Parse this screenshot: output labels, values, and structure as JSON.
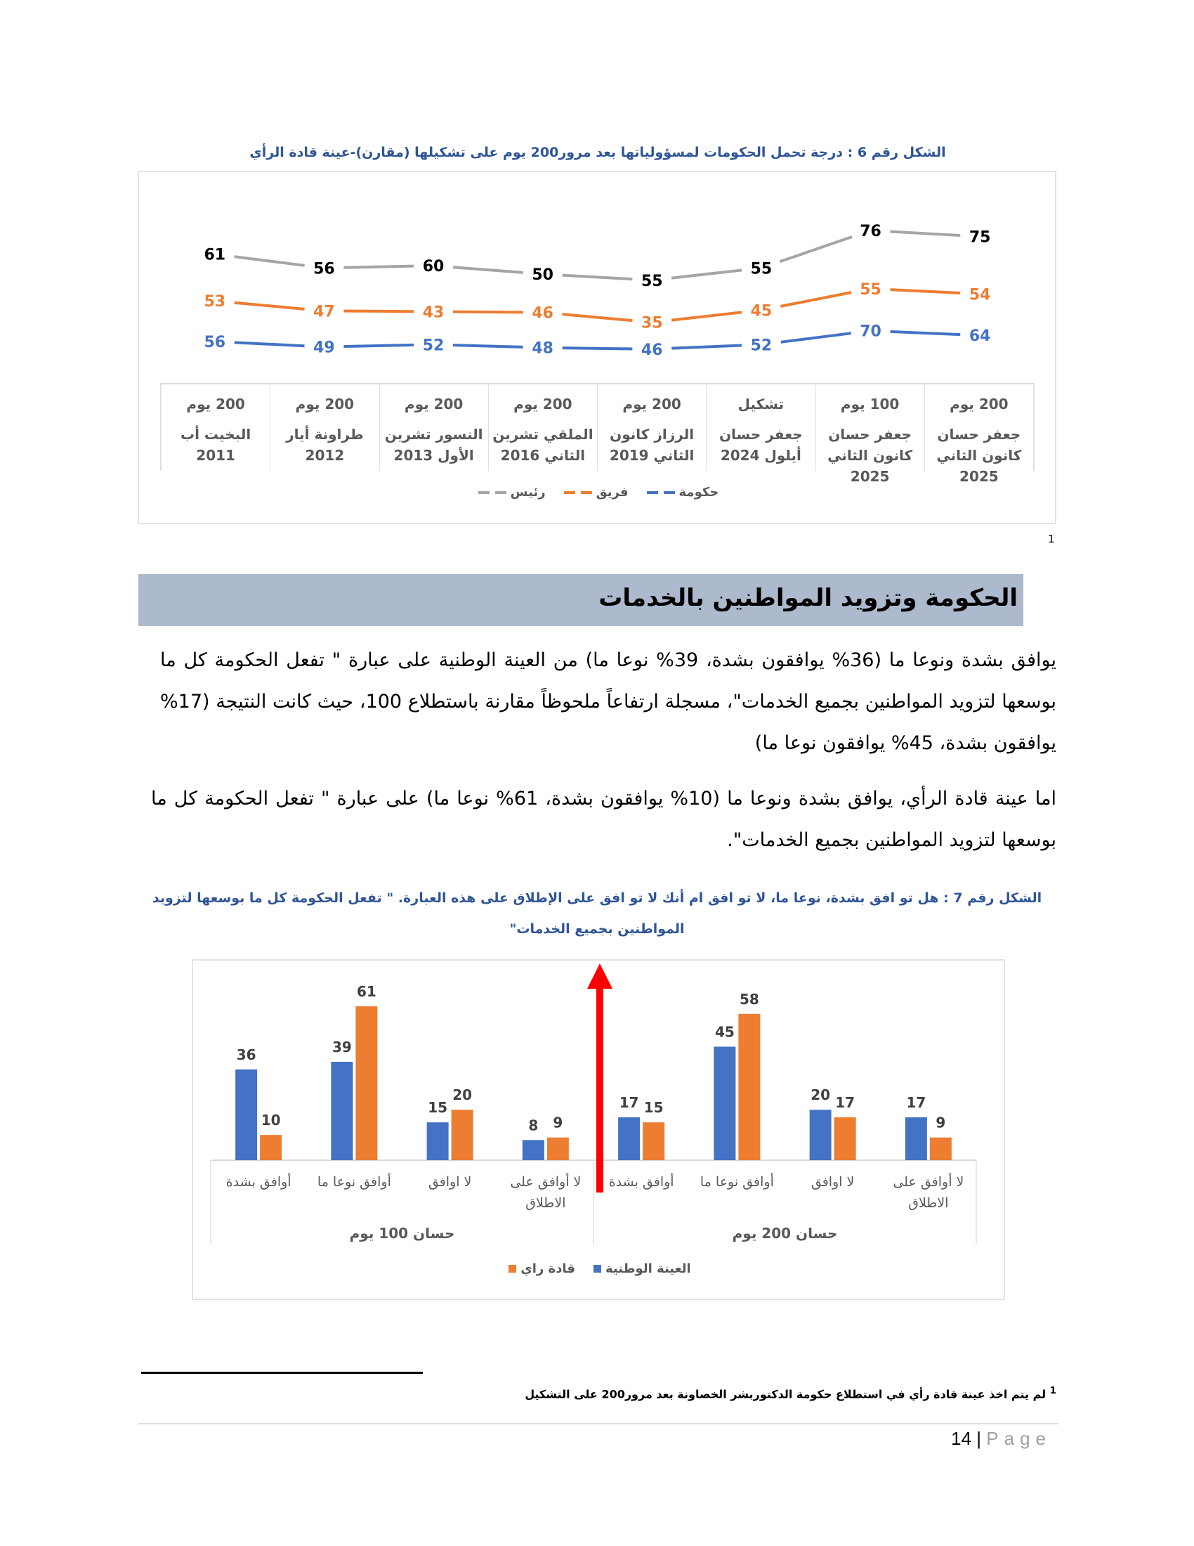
{
  "figure6": {
    "title": "الشكل رقم 6 : درجة تحمل الحكومات لمسؤولياتها بعد مرور200 يوم على تشكيلها (مقارن)-عينة قادة الرأي",
    "footnote_ref": "1"
  },
  "chart_data": [
    {
      "type": "line",
      "stacked": true,
      "title": "",
      "categories": [
        {
          "line1": "200 يوم",
          "line2": "البخيت أب 2011"
        },
        {
          "line1": "200 يوم",
          "line2": "طراونة أيار 2012"
        },
        {
          "line1": "200 يوم",
          "line2": "النسور تشرين الأول 2013"
        },
        {
          "line1": "200 يوم",
          "line2": "الملقي تشرين الثاني 2016"
        },
        {
          "line1": "200 يوم",
          "line2": "الرزاز كانون الثاني 2019"
        },
        {
          "line1": "تشكيل",
          "line2": "جعفر حسان أيلول 2024"
        },
        {
          "line1": "100 يوم",
          "line2": "جعفر حسان كانون الثاني 2025"
        },
        {
          "line1": "200 يوم",
          "line2": "جعفر حسان كانون الثاني 2025"
        }
      ],
      "series": [
        {
          "name": "حكومة",
          "color": "#4472c4",
          "values": [
            56,
            49,
            52,
            48,
            46,
            52,
            70,
            64
          ]
        },
        {
          "name": "فريق",
          "color": "#ed7d31",
          "values": [
            53,
            47,
            43,
            46,
            35,
            45,
            55,
            54
          ]
        },
        {
          "name": "رئيس",
          "color": "#a5a5a5",
          "label_color": "#000000",
          "values": [
            61,
            56,
            60,
            50,
            55,
            55,
            76,
            75
          ]
        }
      ],
      "legend": "bottom",
      "grid": false
    },
    {
      "type": "bar",
      "title": "الشكل رقم 7 : هل تو افق بشدة، نوعا ما، لا تو افق ام أنك لا تو افق على الإطلاق على هذه العبارة. \" تفعل الحكومة كل ما بوسعها لتزويد المواطنين بجميع الخدمات\"",
      "groups": [
        {
          "label": "حسان 200 يوم",
          "categories": [
            "أوافق بشدة",
            "أوافق نوعا ما",
            "لا اوافق",
            "لا أوافق على الاطلاق"
          ]
        },
        {
          "label": "حسان 100 يوم",
          "categories": [
            "أوافق بشدة",
            "أوافق نوعا ما",
            "لا اوافق",
            "لا أوافق على الاطلاق"
          ]
        }
      ],
      "series": [
        {
          "name": "العينة الوطنية",
          "color": "#4472c4",
          "values": [
            36,
            39,
            15,
            8,
            17,
            45,
            20,
            17
          ]
        },
        {
          "name": "قادة راي",
          "color": "#ed7d31",
          "values": [
            10,
            61,
            20,
            9,
            15,
            58,
            17,
            9
          ]
        }
      ],
      "legend": "bottom",
      "grid": false,
      "annotation": {
        "type": "arrow-up",
        "color": "#ff0000"
      }
    }
  ],
  "section": {
    "heading": "الحكومة وتزويد المواطنين بالخدمات",
    "paragraphs": [
      "يوافق بشدة ونوعا ما (36% يوافقون بشدة، 39% نوعا ما) من العينة الوطنية على عبارة \" تفعل الحكومة كل ما بوسعها لتزويد المواطنين بجميع الخدمات\"، مسجلة ارتفاعاً ملحوظاً مقارنة باستطلاع 100، حيث كانت النتيجة (17% يوافقون بشدة، 45% يوافقون نوعا ما)",
      "اما عينة قادة الرأي، يوافق بشدة ونوعا ما (10% يوافقون بشدة، 61% نوعا ما) على عبارة \" تفعل الحكومة كل ما بوسعها لتزويد المواطنين بجميع الخدمات\"."
    ]
  },
  "footnote": {
    "ref": "1",
    "text": "لم يتم اخذ عينة قادة رأي في استطلاع حكومة الدكتوربشر الخصاونة بعد مرور200 على التشكيل"
  },
  "page": {
    "number": "14",
    "separator": "|",
    "label": "Page"
  }
}
